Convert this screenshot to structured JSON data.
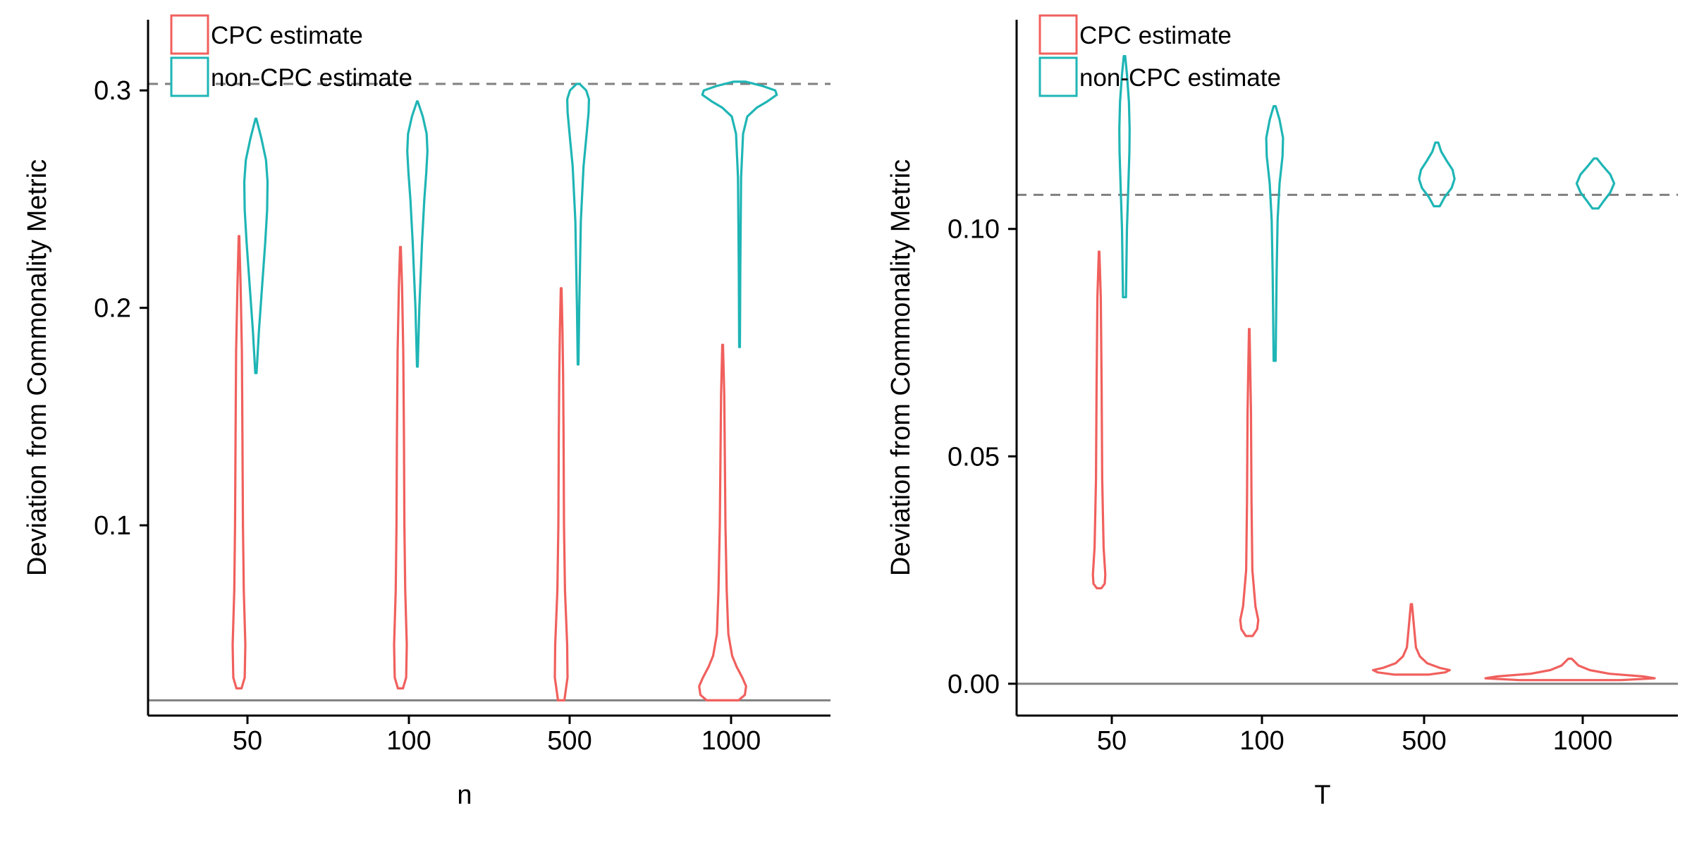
{
  "colors": {
    "cpc": "#F0605D",
    "noncpc": "#1FB5B5",
    "refline": "#808080",
    "axis": "#000000"
  },
  "chart_data": [
    {
      "type": "violin",
      "xlabel": "n",
      "ylabel": "Deviation from Commonality Metric",
      "ylim": [
        0.0125,
        0.3325
      ],
      "yticks": [
        0.1,
        0.2,
        0.3
      ],
      "ytick_labels": [
        "0.1",
        "0.2",
        "0.3"
      ],
      "categories": [
        "50",
        "100",
        "500",
        "1000"
      ],
      "reference_lines": {
        "dashed": 0.303,
        "solid": 0.0195
      },
      "legend": {
        "position": "top-left",
        "entries": [
          "CPC estimate",
          "non-CPC estimate"
        ]
      },
      "series": [
        {
          "name": "CPC estimate",
          "color_key": "cpc",
          "violins": [
            {
              "category": "50",
              "min": 0.025,
              "max": 0.233,
              "profile": [
                [
                  0.025,
                  0.4
                ],
                [
                  0.03,
                  0.9
                ],
                [
                  0.045,
                  1.0
                ],
                [
                  0.07,
                  0.75
                ],
                [
                  0.1,
                  0.62
                ],
                [
                  0.14,
                  0.55
                ],
                [
                  0.18,
                  0.45
                ],
                [
                  0.21,
                  0.25
                ],
                [
                  0.233,
                  0.05
                ]
              ]
            },
            {
              "category": "100",
              "min": 0.025,
              "max": 0.228,
              "profile": [
                [
                  0.025,
                  0.4
                ],
                [
                  0.03,
                  0.9
                ],
                [
                  0.045,
                  1.0
                ],
                [
                  0.07,
                  0.75
                ],
                [
                  0.1,
                  0.62
                ],
                [
                  0.14,
                  0.55
                ],
                [
                  0.18,
                  0.45
                ],
                [
                  0.21,
                  0.25
                ],
                [
                  0.228,
                  0.05
                ]
              ]
            },
            {
              "category": "500",
              "min": 0.0195,
              "max": 0.209,
              "profile": [
                [
                  0.0195,
                  0.5
                ],
                [
                  0.03,
                  1.0
                ],
                [
                  0.045,
                  0.95
                ],
                [
                  0.07,
                  0.6
                ],
                [
                  0.1,
                  0.45
                ],
                [
                  0.14,
                  0.38
                ],
                [
                  0.17,
                  0.3
                ],
                [
                  0.19,
                  0.2
                ],
                [
                  0.209,
                  0.05
                ]
              ]
            },
            {
              "category": "1000",
              "min": 0.0195,
              "max": 0.183,
              "profile": [
                [
                  0.0195,
                  2.5
                ],
                [
                  0.022,
                  3.5
                ],
                [
                  0.026,
                  3.7
                ],
                [
                  0.03,
                  3.1
                ],
                [
                  0.035,
                  2.2
                ],
                [
                  0.04,
                  1.5
                ],
                [
                  0.05,
                  0.9
                ],
                [
                  0.07,
                  0.65
                ],
                [
                  0.1,
                  0.45
                ],
                [
                  0.13,
                  0.35
                ],
                [
                  0.16,
                  0.25
                ],
                [
                  0.183,
                  0.05
                ]
              ]
            }
          ]
        },
        {
          "name": "non-CPC estimate",
          "color_key": "noncpc",
          "violins": [
            {
              "category": "50",
              "min": 0.17,
              "max": 0.287,
              "profile": [
                [
                  0.17,
                  0.08
                ],
                [
                  0.19,
                  0.4
                ],
                [
                  0.21,
                  0.8
                ],
                [
                  0.23,
                  1.2
                ],
                [
                  0.245,
                  1.45
                ],
                [
                  0.258,
                  1.5
                ],
                [
                  0.268,
                  1.3
                ],
                [
                  0.278,
                  0.7
                ],
                [
                  0.287,
                  0.05
                ]
              ]
            },
            {
              "category": "100",
              "min": 0.173,
              "max": 0.295,
              "profile": [
                [
                  0.173,
                  0.05
                ],
                [
                  0.2,
                  0.25
                ],
                [
                  0.23,
                  0.6
                ],
                [
                  0.25,
                  0.9
                ],
                [
                  0.262,
                  1.15
                ],
                [
                  0.272,
                  1.3
                ],
                [
                  0.28,
                  1.2
                ],
                [
                  0.288,
                  0.7
                ],
                [
                  0.295,
                  0.05
                ]
              ]
            },
            {
              "category": "500",
              "min": 0.174,
              "max": 0.303,
              "profile": [
                [
                  0.174,
                  0.05
                ],
                [
                  0.2,
                  0.15
                ],
                [
                  0.24,
                  0.35
                ],
                [
                  0.265,
                  0.7
                ],
                [
                  0.28,
                  1.1
                ],
                [
                  0.29,
                  1.35
                ],
                [
                  0.296,
                  1.4
                ],
                [
                  0.3,
                  1.05
                ],
                [
                  0.303,
                  0.2
                ]
              ]
            },
            {
              "category": "1000",
              "min": 0.182,
              "max": 0.304,
              "profile": [
                [
                  0.182,
                  0.05
                ],
                [
                  0.22,
                  0.1
                ],
                [
                  0.26,
                  0.2
                ],
                [
                  0.28,
                  0.45
                ],
                [
                  0.288,
                  1.0
                ],
                [
                  0.292,
                  2.2
                ],
                [
                  0.295,
                  3.6
                ],
                [
                  0.298,
                  4.8
                ],
                [
                  0.3,
                  4.6
                ],
                [
                  0.302,
                  3.0
                ],
                [
                  0.304,
                  0.8
                ]
              ]
            }
          ]
        }
      ]
    },
    {
      "type": "violin",
      "xlabel": "T",
      "ylabel": "Deviation from Commonality Metric",
      "ylim": [
        -0.007,
        0.146
      ],
      "yticks": [
        0.0,
        0.05,
        0.1
      ],
      "ytick_labels": [
        "0.00",
        "0.05",
        "0.10"
      ],
      "categories": [
        "50",
        "100",
        "500",
        "1000"
      ],
      "reference_lines": {
        "dashed": 0.1075,
        "solid": 0.0
      },
      "legend": {
        "position": "top-left",
        "entries": [
          "CPC estimate",
          "non-CPC estimate"
        ]
      },
      "series": [
        {
          "name": "CPC estimate",
          "color_key": "cpc",
          "violins": [
            {
              "category": "50",
              "min": 0.021,
              "max": 0.095,
              "profile": [
                [
                  0.021,
                  0.4
                ],
                [
                  0.022,
                  1.0
                ],
                [
                  0.024,
                  1.1
                ],
                [
                  0.03,
                  0.8
                ],
                [
                  0.045,
                  0.55
                ],
                [
                  0.065,
                  0.45
                ],
                [
                  0.085,
                  0.3
                ],
                [
                  0.095,
                  0.05
                ]
              ]
            },
            {
              "category": "100",
              "min": 0.0105,
              "max": 0.078,
              "profile": [
                [
                  0.0105,
                  0.6
                ],
                [
                  0.012,
                  1.4
                ],
                [
                  0.014,
                  1.6
                ],
                [
                  0.017,
                  1.1
                ],
                [
                  0.025,
                  0.55
                ],
                [
                  0.04,
                  0.4
                ],
                [
                  0.06,
                  0.3
                ],
                [
                  0.078,
                  0.05
                ]
              ]
            },
            {
              "category": "500",
              "min": 0.002,
              "max": 0.0175,
              "profile": [
                [
                  0.002,
                  3.0
                ],
                [
                  0.0025,
                  6.0
                ],
                [
                  0.003,
                  6.8
                ],
                [
                  0.0035,
                  5.0
                ],
                [
                  0.0045,
                  2.8
                ],
                [
                  0.006,
                  1.5
                ],
                [
                  0.008,
                  0.8
                ],
                [
                  0.012,
                  0.5
                ],
                [
                  0.0175,
                  0.1
                ]
              ]
            },
            {
              "category": "1000",
              "min": 0.0008,
              "max": 0.0055,
              "profile": [
                [
                  0.0008,
                  9.0
                ],
                [
                  0.0012,
                  15.0
                ],
                [
                  0.0016,
                  13.0
                ],
                [
                  0.0022,
                  7.0
                ],
                [
                  0.003,
                  3.5
                ],
                [
                  0.004,
                  1.5
                ],
                [
                  0.0055,
                  0.3
                ]
              ]
            }
          ]
        },
        {
          "name": "non-CPC estimate",
          "color_key": "noncpc",
          "violins": [
            {
              "category": "50",
              "min": 0.085,
              "max": 0.138,
              "profile": [
                [
                  0.085,
                  0.3
                ],
                [
                  0.1,
                  0.5
                ],
                [
                  0.11,
                  0.8
                ],
                [
                  0.117,
                  1.0
                ],
                [
                  0.122,
                  1.05
                ],
                [
                  0.128,
                  0.9
                ],
                [
                  0.134,
                  0.5
                ],
                [
                  0.138,
                  0.15
                ]
              ]
            },
            {
              "category": "100",
              "min": 0.071,
              "max": 0.127,
              "profile": [
                [
                  0.071,
                  0.2
                ],
                [
                  0.09,
                  0.4
                ],
                [
                  0.102,
                  0.6
                ],
                [
                  0.11,
                  1.0
                ],
                [
                  0.116,
                  1.6
                ],
                [
                  0.12,
                  1.7
                ],
                [
                  0.124,
                  1.0
                ],
                [
                  0.127,
                  0.2
                ]
              ]
            },
            {
              "category": "500",
              "min": 0.105,
              "max": 0.119,
              "profile": [
                [
                  0.105,
                  0.6
                ],
                [
                  0.107,
                  1.6
                ],
                [
                  0.109,
                  3.0
                ],
                [
                  0.111,
                  3.6
                ],
                [
                  0.113,
                  3.2
                ],
                [
                  0.115,
                  2.0
                ],
                [
                  0.117,
                  0.9
                ],
                [
                  0.119,
                  0.3
                ]
              ]
            },
            {
              "category": "1000",
              "min": 0.1045,
              "max": 0.1155,
              "profile": [
                [
                  0.1045,
                  0.6
                ],
                [
                  0.106,
                  1.6
                ],
                [
                  0.108,
                  3.0
                ],
                [
                  0.11,
                  3.8
                ],
                [
                  0.112,
                  3.0
                ],
                [
                  0.114,
                  1.4
                ],
                [
                  0.1155,
                  0.3
                ]
              ]
            }
          ]
        }
      ]
    }
  ]
}
